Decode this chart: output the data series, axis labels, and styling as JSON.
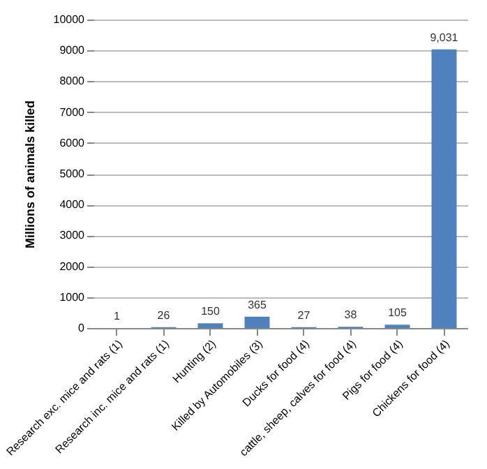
{
  "chart_data": {
    "type": "bar",
    "ylabel": "Millions of animals killed",
    "categories": [
      "Research exc. mice and rats (1)",
      "Research inc. mice and rats (1)",
      "Hunting (2)",
      "Killed by Automobiles (3)",
      "Ducks for food (4)",
      "cattle, sheep, calves  for food (4)",
      "Pigs for food (4)",
      "Chickens for food (4)"
    ],
    "values": [
      1,
      26,
      150,
      365,
      27,
      38,
      105,
      9031
    ],
    "value_labels": [
      "1",
      "26",
      "150",
      "365",
      "27",
      "38",
      "105",
      "9,031"
    ],
    "color": "#4f81bd",
    "ylim": [
      0,
      10000
    ],
    "yticks": [
      0,
      1000,
      2000,
      3000,
      4000,
      5000,
      6000,
      7000,
      8000,
      9000,
      10000
    ],
    "grid": "y"
  }
}
